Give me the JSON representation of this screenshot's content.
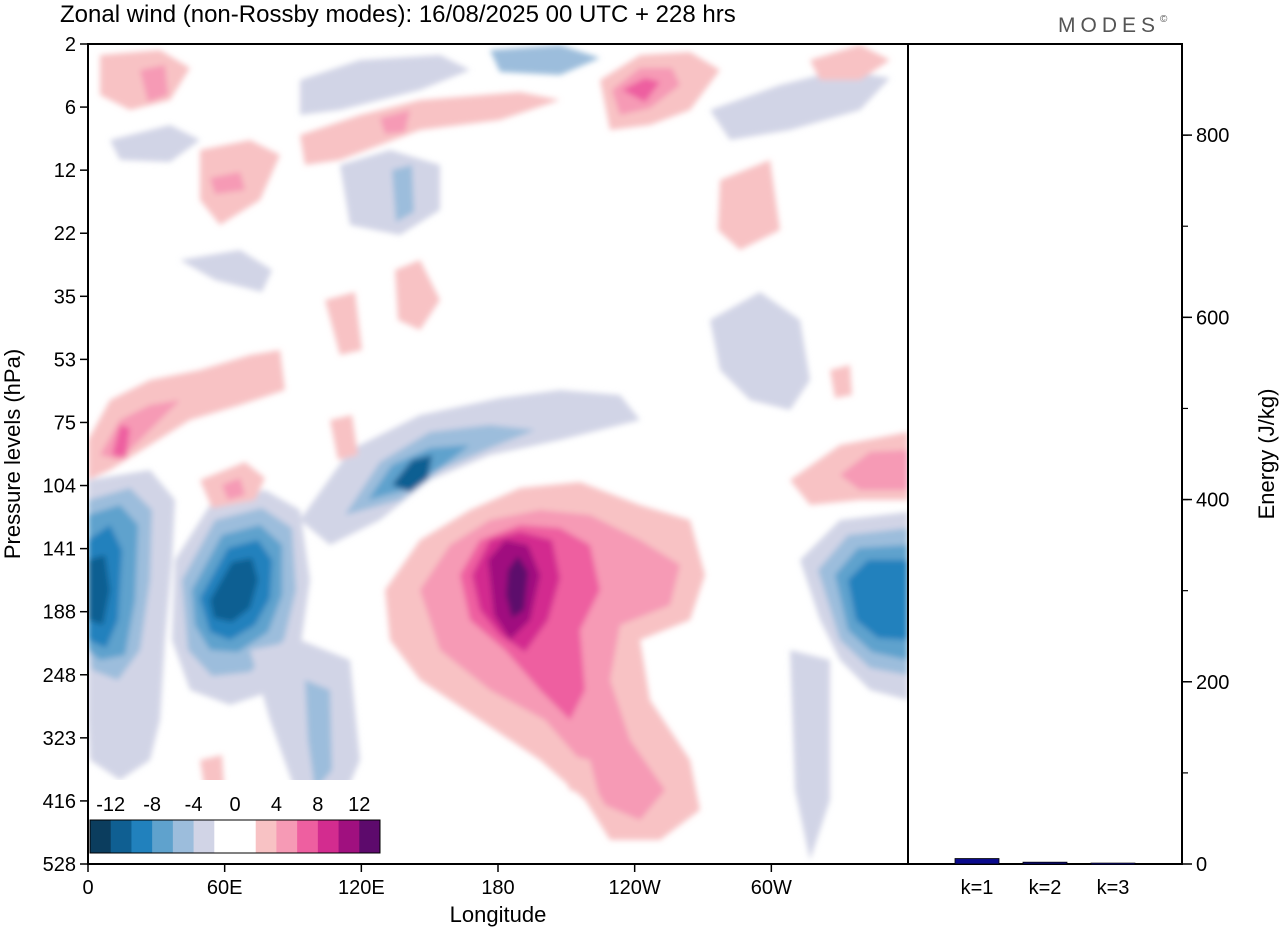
{
  "title": "Zonal wind (non-Rossby modes):  16/08/2025  00 UTC  + 228 hrs",
  "brand": "MODES",
  "brand_mark": "©",
  "chart_data": [
    {
      "type": "heatmap",
      "title": "Zonal wind (non-Rossby modes):  16/08/2025  00 UTC  + 228 hrs",
      "xlabel": "Longitude",
      "ylabel": "Pressure levels (hPa)",
      "x_tick_labels": [
        "0",
        "60E",
        "120E",
        "180",
        "120W",
        "60W"
      ],
      "x_tick_degrees": [
        0,
        60,
        120,
        180,
        240,
        300
      ],
      "xlim": [
        0,
        360
      ],
      "y_tick_labels": [
        "2",
        "6",
        "12",
        "22",
        "35",
        "53",
        "75",
        "104",
        "141",
        "188",
        "248",
        "323",
        "416",
        "528"
      ],
      "colorbar": {
        "labels": [
          "-12",
          "-8",
          "-4",
          "0",
          "4",
          "8",
          "12"
        ],
        "colors": [
          "#0b3d5e",
          "#0f5f92",
          "#2181bd",
          "#5fa2cd",
          "#9cbddc",
          "#d1d4e6",
          "#ffffff",
          "#ffffff",
          "#f8c2c4",
          "#f69ab5",
          "#ee5fa0",
          "#d32c8f",
          "#a0107f",
          "#5d0a6c"
        ]
      },
      "features": [
        {
          "name": "jet-core-negative-west",
          "lon_center": 8,
          "level": "188",
          "value": -12
        },
        {
          "name": "jet-core-negative-60E",
          "lon_center": 55,
          "level": "188",
          "value": -12
        },
        {
          "name": "jet-core-negative-east",
          "lon_center": 350,
          "level": "188",
          "value": -10
        },
        {
          "name": "jet-core-negative-upper",
          "lon_center": 140,
          "level": "104",
          "value": -10
        },
        {
          "name": "jet-core-positive-180",
          "lon_center": 190,
          "level": "188",
          "value": 14
        },
        {
          "name": "jet-core-positive-lower",
          "lon_center": 230,
          "level": "416",
          "value": 6
        },
        {
          "name": "strato-positive",
          "lon_center": 240,
          "level": "6",
          "value": 10
        }
      ]
    },
    {
      "type": "bar",
      "ylabel": "Energy (J/kg)",
      "categories": [
        "k=1",
        "k=2",
        "k=3"
      ],
      "values": [
        6,
        2,
        1
      ],
      "ylim": [
        0,
        900
      ],
      "y_tick_labels": [
        "0",
        "200",
        "400",
        "600",
        "800"
      ],
      "y_tick_values": [
        0,
        200,
        400,
        600,
        800
      ],
      "bar_color": "#0a0a8c"
    }
  ]
}
